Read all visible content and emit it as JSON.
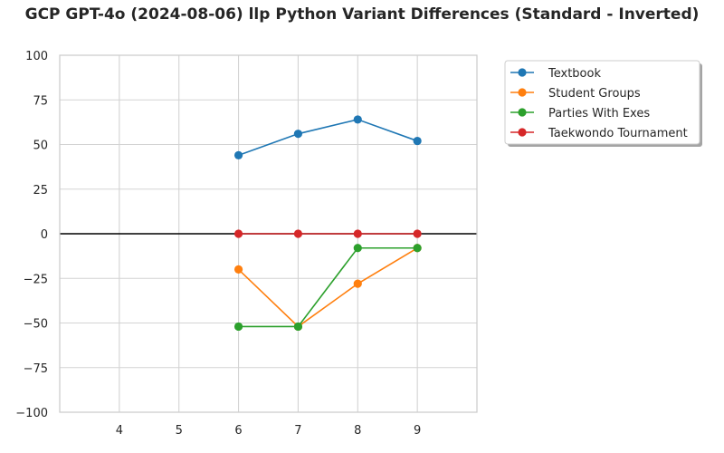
{
  "chart_data": {
    "type": "line",
    "title": "GCP GPT-4o (2024-08-06) llp Python Variant Differences (Standard - Inverted)",
    "xlabel": "",
    "ylabel": "",
    "x": [
      6,
      7,
      8,
      9
    ],
    "xlim": [
      3,
      10
    ],
    "xticks": [
      4,
      5,
      6,
      7,
      8,
      9
    ],
    "ylim": [
      -100,
      100
    ],
    "yticks": [
      -100,
      -75,
      -50,
      -25,
      0,
      25,
      50,
      75,
      100
    ],
    "grid": true,
    "reference_line": 0,
    "legend_position": "outside-top-right",
    "series": [
      {
        "name": "Textbook",
        "color": "#1f77b4",
        "values": [
          44,
          56,
          64,
          52
        ]
      },
      {
        "name": "Student Groups",
        "color": "#ff7f0e",
        "values": [
          -20,
          -52,
          -28,
          -8
        ]
      },
      {
        "name": "Parties With Exes",
        "color": "#2ca02c",
        "values": [
          -52,
          -52,
          -8,
          -8
        ]
      },
      {
        "name": "Taekwondo Tournament",
        "color": "#d62728",
        "values": [
          0,
          0,
          0,
          0
        ]
      }
    ]
  }
}
